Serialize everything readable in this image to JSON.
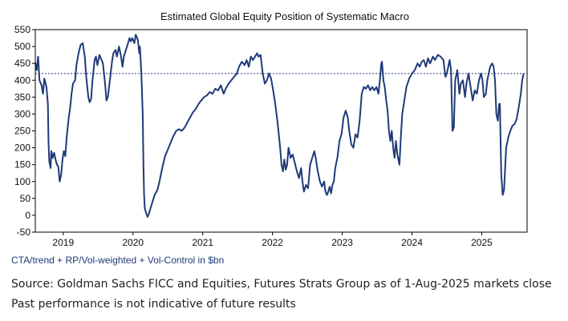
{
  "chart_data": {
    "type": "line",
    "title": "Estimated Global Equity Position of Systematic Macro",
    "subtitle_below_axis": "CTA/trend + RP/Vol-weighted + Vol-Control in $bn",
    "ylim": [
      -50,
      550
    ],
    "y_ticks": [
      -50,
      0,
      50,
      100,
      150,
      200,
      250,
      300,
      350,
      400,
      450,
      500,
      550
    ],
    "x_range": [
      2018.6,
      2025.65
    ],
    "x_tick_labels": [
      "2019",
      "2020",
      "2021",
      "2022",
      "2023",
      "2024",
      "2025"
    ],
    "reference_line": {
      "value": 420,
      "style": "dashed"
    },
    "grid": false,
    "line_color": "#1f3a78",
    "series": [
      {
        "points": [
          [
            2018.6,
            452
          ],
          [
            2018.62,
            430
          ],
          [
            2018.64,
            470
          ],
          [
            2018.66,
            400
          ],
          [
            2018.69,
            385
          ],
          [
            2018.71,
            360
          ],
          [
            2018.73,
            405
          ],
          [
            2018.76,
            380
          ],
          [
            2018.78,
            330
          ],
          [
            2018.79,
            215
          ],
          [
            2018.8,
            160
          ],
          [
            2018.82,
            140
          ],
          [
            2018.83,
            190
          ],
          [
            2018.85,
            170
          ],
          [
            2018.87,
            185
          ],
          [
            2018.89,
            165
          ],
          [
            2018.91,
            150
          ],
          [
            2018.93,
            145
          ],
          [
            2018.95,
            100
          ],
          [
            2018.97,
            120
          ],
          [
            2018.99,
            165
          ],
          [
            2019.01,
            190
          ],
          [
            2019.03,
            175
          ],
          [
            2019.05,
            230
          ],
          [
            2019.08,
            290
          ],
          [
            2019.1,
            320
          ],
          [
            2019.12,
            360
          ],
          [
            2019.14,
            390
          ],
          [
            2019.17,
            400
          ],
          [
            2019.19,
            445
          ],
          [
            2019.22,
            480
          ],
          [
            2019.25,
            505
          ],
          [
            2019.28,
            510
          ],
          [
            2019.31,
            470
          ],
          [
            2019.33,
            410
          ],
          [
            2019.36,
            350
          ],
          [
            2019.38,
            335
          ],
          [
            2019.4,
            345
          ],
          [
            2019.42,
            400
          ],
          [
            2019.45,
            460
          ],
          [
            2019.47,
            470
          ],
          [
            2019.49,
            445
          ],
          [
            2019.52,
            475
          ],
          [
            2019.55,
            460
          ],
          [
            2019.57,
            450
          ],
          [
            2019.6,
            390
          ],
          [
            2019.62,
            340
          ],
          [
            2019.64,
            350
          ],
          [
            2019.67,
            400
          ],
          [
            2019.7,
            455
          ],
          [
            2019.72,
            480
          ],
          [
            2019.75,
            490
          ],
          [
            2019.77,
            470
          ],
          [
            2019.8,
            500
          ],
          [
            2019.83,
            470
          ],
          [
            2019.85,
            440
          ],
          [
            2019.87,
            470
          ],
          [
            2019.9,
            490
          ],
          [
            2019.93,
            510
          ],
          [
            2019.95,
            525
          ],
          [
            2019.97,
            515
          ],
          [
            2019.99,
            525
          ],
          [
            2020.02,
            510
          ],
          [
            2020.04,
            535
          ],
          [
            2020.07,
            520
          ],
          [
            2020.09,
            480
          ],
          [
            2020.1,
            500
          ],
          [
            2020.12,
            420
          ],
          [
            2020.14,
            300
          ],
          [
            2020.15,
            150
          ],
          [
            2020.16,
            60
          ],
          [
            2020.17,
            20
          ],
          [
            2020.19,
            5
          ],
          [
            2020.21,
            -5
          ],
          [
            2020.23,
            5
          ],
          [
            2020.25,
            20
          ],
          [
            2020.28,
            40
          ],
          [
            2020.31,
            60
          ],
          [
            2020.35,
            75
          ],
          [
            2020.38,
            100
          ],
          [
            2020.42,
            140
          ],
          [
            2020.46,
            175
          ],
          [
            2020.5,
            195
          ],
          [
            2020.54,
            215
          ],
          [
            2020.58,
            235
          ],
          [
            2020.62,
            250
          ],
          [
            2020.66,
            255
          ],
          [
            2020.7,
            250
          ],
          [
            2020.74,
            260
          ],
          [
            2020.78,
            275
          ],
          [
            2020.82,
            290
          ],
          [
            2020.86,
            305
          ],
          [
            2020.9,
            315
          ],
          [
            2020.94,
            330
          ],
          [
            2020.98,
            340
          ],
          [
            2021.02,
            350
          ],
          [
            2021.06,
            355
          ],
          [
            2021.1,
            365
          ],
          [
            2021.14,
            360
          ],
          [
            2021.18,
            375
          ],
          [
            2021.22,
            370
          ],
          [
            2021.26,
            385
          ],
          [
            2021.3,
            360
          ],
          [
            2021.33,
            375
          ],
          [
            2021.37,
            390
          ],
          [
            2021.41,
            400
          ],
          [
            2021.45,
            410
          ],
          [
            2021.49,
            420
          ],
          [
            2021.52,
            440
          ],
          [
            2021.56,
            455
          ],
          [
            2021.6,
            445
          ],
          [
            2021.63,
            460
          ],
          [
            2021.66,
            440
          ],
          [
            2021.69,
            470
          ],
          [
            2021.72,
            460
          ],
          [
            2021.75,
            470
          ],
          [
            2021.78,
            480
          ],
          [
            2021.8,
            470
          ],
          [
            2021.83,
            475
          ],
          [
            2021.86,
            420
          ],
          [
            2021.89,
            390
          ],
          [
            2021.92,
            400
          ],
          [
            2021.95,
            420
          ],
          [
            2021.98,
            405
          ],
          [
            2022.01,
            370
          ],
          [
            2022.04,
            330
          ],
          [
            2022.07,
            280
          ],
          [
            2022.09,
            240
          ],
          [
            2022.11,
            200
          ],
          [
            2022.13,
            150
          ],
          [
            2022.15,
            130
          ],
          [
            2022.17,
            165
          ],
          [
            2022.19,
            135
          ],
          [
            2022.21,
            150
          ],
          [
            2022.23,
            200
          ],
          [
            2022.26,
            170
          ],
          [
            2022.29,
            180
          ],
          [
            2022.32,
            155
          ],
          [
            2022.35,
            130
          ],
          [
            2022.38,
            110
          ],
          [
            2022.41,
            140
          ],
          [
            2022.43,
            100
          ],
          [
            2022.45,
            70
          ],
          [
            2022.48,
            90
          ],
          [
            2022.51,
            80
          ],
          [
            2022.54,
            150
          ],
          [
            2022.57,
            170
          ],
          [
            2022.6,
            190
          ],
          [
            2022.62,
            170
          ],
          [
            2022.65,
            130
          ],
          [
            2022.68,
            100
          ],
          [
            2022.71,
            85
          ],
          [
            2022.74,
            100
          ],
          [
            2022.76,
            70
          ],
          [
            2022.78,
            60
          ],
          [
            2022.8,
            70
          ],
          [
            2022.82,
            85
          ],
          [
            2022.84,
            65
          ],
          [
            2022.86,
            90
          ],
          [
            2022.88,
            100
          ],
          [
            2022.9,
            140
          ],
          [
            2022.93,
            170
          ],
          [
            2022.96,
            220
          ],
          [
            2022.99,
            240
          ],
          [
            2023.02,
            290
          ],
          [
            2023.05,
            310
          ],
          [
            2023.08,
            290
          ],
          [
            2023.1,
            250
          ],
          [
            2023.13,
            210
          ],
          [
            2023.16,
            200
          ],
          [
            2023.19,
            240
          ],
          [
            2023.22,
            230
          ],
          [
            2023.25,
            280
          ],
          [
            2023.28,
            360
          ],
          [
            2023.31,
            380
          ],
          [
            2023.34,
            375
          ],
          [
            2023.37,
            385
          ],
          [
            2023.4,
            370
          ],
          [
            2023.43,
            380
          ],
          [
            2023.46,
            370
          ],
          [
            2023.49,
            380
          ],
          [
            2023.52,
            360
          ],
          [
            2023.54,
            400
          ],
          [
            2023.56,
            450
          ],
          [
            2023.57,
            455
          ],
          [
            2023.59,
            400
          ],
          [
            2023.61,
            380
          ],
          [
            2023.63,
            340
          ],
          [
            2023.65,
            310
          ],
          [
            2023.67,
            250
          ],
          [
            2023.69,
            220
          ],
          [
            2023.71,
            250
          ],
          [
            2023.73,
            200
          ],
          [
            2023.75,
            170
          ],
          [
            2023.77,
            220
          ],
          [
            2023.79,
            180
          ],
          [
            2023.8,
            170
          ],
          [
            2023.82,
            150
          ],
          [
            2023.84,
            230
          ],
          [
            2023.86,
            300
          ],
          [
            2023.89,
            340
          ],
          [
            2023.92,
            380
          ],
          [
            2023.96,
            405
          ],
          [
            2024.0,
            420
          ],
          [
            2024.04,
            430
          ],
          [
            2024.08,
            450
          ],
          [
            2024.11,
            440
          ],
          [
            2024.14,
            455
          ],
          [
            2024.17,
            460
          ],
          [
            2024.2,
            440
          ],
          [
            2024.23,
            465
          ],
          [
            2024.26,
            450
          ],
          [
            2024.3,
            470
          ],
          [
            2024.33,
            460
          ],
          [
            2024.37,
            475
          ],
          [
            2024.41,
            470
          ],
          [
            2024.45,
            460
          ],
          [
            2024.48,
            410
          ],
          [
            2024.5,
            420
          ],
          [
            2024.52,
            440
          ],
          [
            2024.54,
            460
          ],
          [
            2024.56,
            430
          ],
          [
            2024.58,
            250
          ],
          [
            2024.6,
            260
          ],
          [
            2024.62,
            400
          ],
          [
            2024.65,
            430
          ],
          [
            2024.68,
            360
          ],
          [
            2024.7,
            390
          ],
          [
            2024.73,
            400
          ],
          [
            2024.76,
            350
          ],
          [
            2024.78,
            390
          ],
          [
            2024.81,
            420
          ],
          [
            2024.84,
            380
          ],
          [
            2024.87,
            340
          ],
          [
            2024.9,
            370
          ],
          [
            2024.93,
            360
          ],
          [
            2024.96,
            400
          ],
          [
            2024.99,
            420
          ],
          [
            2025.01,
            400
          ],
          [
            2025.03,
            350
          ],
          [
            2025.06,
            360
          ],
          [
            2025.08,
            400
          ],
          [
            2025.1,
            420
          ],
          [
            2025.12,
            440
          ],
          [
            2025.15,
            450
          ],
          [
            2025.17,
            440
          ],
          [
            2025.19,
            400
          ],
          [
            2025.21,
            300
          ],
          [
            2025.23,
            280
          ],
          [
            2025.25,
            330
          ],
          [
            2025.26,
            330
          ],
          [
            2025.28,
            120
          ],
          [
            2025.3,
            60
          ],
          [
            2025.32,
            75
          ],
          [
            2025.35,
            200
          ],
          [
            2025.38,
            230
          ],
          [
            2025.41,
            250
          ],
          [
            2025.44,
            265
          ],
          [
            2025.47,
            270
          ],
          [
            2025.5,
            285
          ],
          [
            2025.53,
            320
          ],
          [
            2025.56,
            360
          ],
          [
            2025.58,
            400
          ],
          [
            2025.6,
            420
          ]
        ]
      }
    ]
  },
  "captions": {
    "source": "Source: Goldman Sachs FICC and Equities, Futures Strats Group as of 1-Aug-2025 markets close",
    "disclaimer": "Past performance is not indicative of future results"
  }
}
